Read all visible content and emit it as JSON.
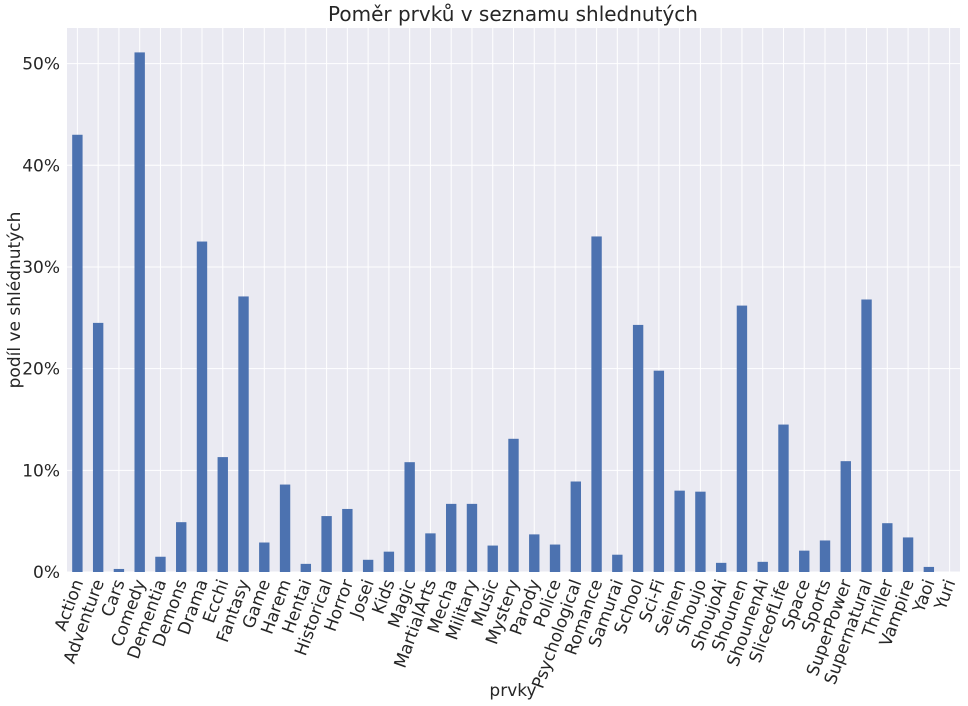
{
  "chart_data": {
    "type": "bar",
    "title": "Poměr prvků v seznamu shlednutých",
    "xlabel": "prvky",
    "ylabel": "podíl ve shlédnutých",
    "ylim": [
      0,
      53.5
    ],
    "yticks": [
      0,
      10,
      20,
      30,
      40,
      50
    ],
    "ytick_labels": [
      "0%",
      "10%",
      "20%",
      "30%",
      "40%",
      "50%"
    ],
    "grid": true,
    "legend": "none",
    "bar_color": "#4c72b0",
    "background_color": "#eaeaf2",
    "grid_color": "#ffffff",
    "categories": [
      "Action",
      "Adventure",
      "Cars",
      "Comedy",
      "Dementia",
      "Demons",
      "Drama",
      "Ecchi",
      "Fantasy",
      "Game",
      "Harem",
      "Hentai",
      "Historical",
      "Horror",
      "Josei",
      "Kids",
      "Magic",
      "MartialArts",
      "Mecha",
      "Military",
      "Music",
      "Mystery",
      "Parody",
      "Police",
      "Psychological",
      "Romance",
      "Samurai",
      "School",
      "Sci-Fi",
      "Seinen",
      "Shoujo",
      "ShoujoAi",
      "Shounen",
      "ShounenAi",
      "SliceofLife",
      "Space",
      "Sports",
      "SuperPower",
      "Supernatural",
      "Thriller",
      "Vampire",
      "Yaoi",
      "Yuri"
    ],
    "values": [
      43.0,
      24.5,
      0.3,
      51.1,
      1.5,
      4.9,
      32.5,
      11.3,
      27.1,
      2.9,
      8.6,
      0.8,
      5.5,
      6.2,
      1.2,
      2.0,
      10.8,
      3.8,
      6.7,
      6.7,
      2.6,
      13.1,
      3.7,
      2.7,
      8.9,
      33.0,
      1.7,
      24.3,
      19.8,
      8.0,
      7.9,
      0.9,
      26.2,
      1.0,
      14.5,
      2.1,
      3.1,
      10.9,
      26.8,
      4.8,
      3.4,
      0.5,
      0.0
    ]
  }
}
